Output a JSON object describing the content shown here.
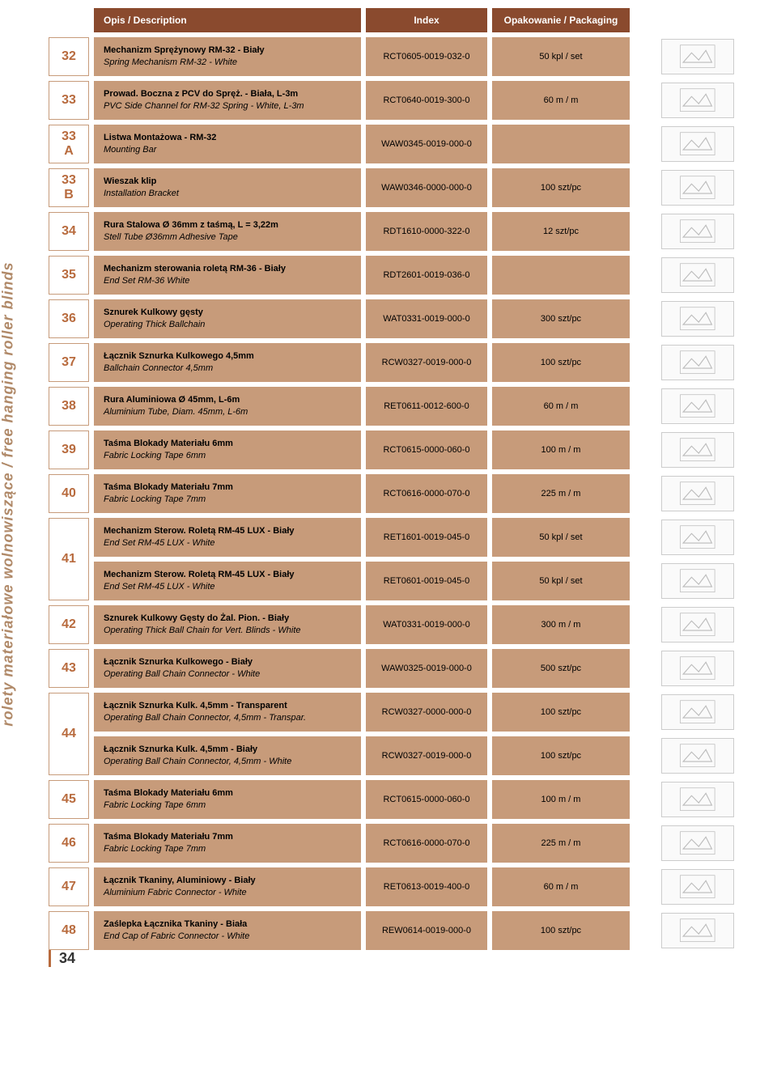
{
  "vertical_label": "rolety materiałowe wolnowiszące / free hanging roller blinds",
  "page_number": "34",
  "headers": {
    "description": "Opis / Description",
    "index": "Index",
    "packaging": "Opakowanie / Packaging"
  },
  "colors": {
    "header_bg": "#8a4a2e",
    "cell_bg": "#c79b7a",
    "num_border": "#c79b7a",
    "num_color": "#b86b3e",
    "text": "#000000"
  },
  "rows": [
    {
      "num": "32",
      "items": [
        {
          "title": "Mechanizm Sprężynowy RM-32 - Biały",
          "sub": "Spring Mechanism RM-32 - White",
          "index": "RCT0605-0019-032-0",
          "pack": "50 kpl / set"
        }
      ]
    },
    {
      "num": "33",
      "items": [
        {
          "title": "Prowad. Boczna z PCV do Spręż. - Biała, L-3m",
          "sub": "PVC Side Channel for RM-32 Spring - White, L-3m",
          "index": "RCT0640-0019-300-0",
          "pack": "60 m / m"
        }
      ]
    },
    {
      "num": "33\nA",
      "items": [
        {
          "title": "Listwa Montażowa - RM-32",
          "sub": "Mounting Bar",
          "index": "WAW0345-0019-000-0",
          "pack": ""
        }
      ]
    },
    {
      "num": "33\nB",
      "items": [
        {
          "title": "Wieszak klip",
          "sub": "Installation Bracket",
          "index": "WAW0346-0000-000-0",
          "pack": "100 szt/pc"
        }
      ]
    },
    {
      "num": "34",
      "items": [
        {
          "title": "Rura Stalowa Ø 36mm z taśmą, L = 3,22m",
          "sub": "Stell Tube Ø36mm Adhesive Tape",
          "index": "RDT1610-0000-322-0",
          "pack": "12 szt/pc"
        }
      ]
    },
    {
      "num": "35",
      "items": [
        {
          "title": "Mechanizm sterowania roletą RM-36 - Biały",
          "sub": "End Set RM-36 White",
          "index": "RDT2601-0019-036-0",
          "pack": ""
        }
      ]
    },
    {
      "num": "36",
      "items": [
        {
          "title": "Sznurek Kulkowy gęsty",
          "sub": "Operating Thick Ballchain",
          "index": "WAT0331-0019-000-0",
          "pack": "300 szt/pc"
        }
      ]
    },
    {
      "num": "37",
      "items": [
        {
          "title": "Łącznik Sznurka Kulkowego 4,5mm",
          "sub": "Ballchain Connector 4,5mm",
          "index": "RCW0327-0019-000-0",
          "pack": "100 szt/pc"
        }
      ]
    },
    {
      "num": "38",
      "items": [
        {
          "title": "Rura Aluminiowa Ø 45mm, L-6m",
          "sub": "Aluminium Tube, Diam. 45mm, L-6m",
          "index": "RET0611-0012-600-0",
          "pack": "60 m / m"
        }
      ]
    },
    {
      "num": "39",
      "items": [
        {
          "title": "Taśma Blokady Materiału 6mm",
          "sub": "Fabric Locking Tape 6mm",
          "index": "RCT0615-0000-060-0",
          "pack": "100 m / m"
        }
      ]
    },
    {
      "num": "40",
      "items": [
        {
          "title": "Taśma Blokady Materiału 7mm",
          "sub": "Fabric Locking Tape 7mm",
          "index": "RCT0616-0000-070-0",
          "pack": "225 m / m"
        }
      ]
    },
    {
      "num": "41",
      "items": [
        {
          "title": "Mechanizm Sterow. Roletą RM-45 LUX - Biały",
          "sub": "End Set RM-45 LUX - White",
          "index": "RET1601-0019-045-0",
          "pack": "50 kpl / set"
        },
        {
          "title": "Mechanizm Sterow. Roletą RM-45 LUX - Biały",
          "sub": "End Set RM-45 LUX - White",
          "index": "RET0601-0019-045-0",
          "pack": "50 kpl / set"
        }
      ]
    },
    {
      "num": "42",
      "items": [
        {
          "title": "Sznurek Kulkowy Gęsty do Żal. Pion. - Biały",
          "sub": "Operating Thick Ball Chain for Vert. Blinds - White",
          "index": "WAT0331-0019-000-0",
          "pack": "300 m / m"
        }
      ]
    },
    {
      "num": "43",
      "items": [
        {
          "title": "Łącznik Sznurka Kulkowego - Biały",
          "sub": "Operating Ball Chain Connector - White",
          "index": "WAW0325-0019-000-0",
          "pack": "500 szt/pc"
        }
      ]
    },
    {
      "num": "44",
      "items": [
        {
          "title": "Łącznik Sznurka Kulk. 4,5mm - Transparent",
          "sub": "Operating Ball Chain Connector, 4,5mm - Transpar.",
          "index": "RCW0327-0000-000-0",
          "pack": "100 szt/pc"
        },
        {
          "title": "Łącznik Sznurka Kulk. 4,5mm - Biały",
          "sub": "Operating Ball Chain Connector, 4,5mm - White",
          "index": "RCW0327-0019-000-0",
          "pack": "100 szt/pc"
        }
      ]
    },
    {
      "num": "45",
      "items": [
        {
          "title": "Taśma Blokady Materiału 6mm",
          "sub": "Fabric Locking Tape 6mm",
          "index": "RCT0615-0000-060-0",
          "pack": "100 m / m"
        }
      ]
    },
    {
      "num": "46",
      "items": [
        {
          "title": "Taśma Blokady Materiału 7mm",
          "sub": "Fabric Locking Tape 7mm",
          "index": "RCT0616-0000-070-0",
          "pack": "225 m / m"
        }
      ]
    },
    {
      "num": "47",
      "items": [
        {
          "title": "Łącznik Tkaniny, Aluminiowy - Biały",
          "sub": "Aluminium Fabric Connector - White",
          "index": "RET0613-0019-400-0",
          "pack": "60 m / m"
        }
      ]
    },
    {
      "num": "48",
      "items": [
        {
          "title": "Zaślepka Łącznika Tkaniny - Biała",
          "sub": "End Cap of Fabric Connector - White",
          "index": "REW0614-0019-000-0",
          "pack": "100 szt/pc"
        }
      ]
    }
  ]
}
